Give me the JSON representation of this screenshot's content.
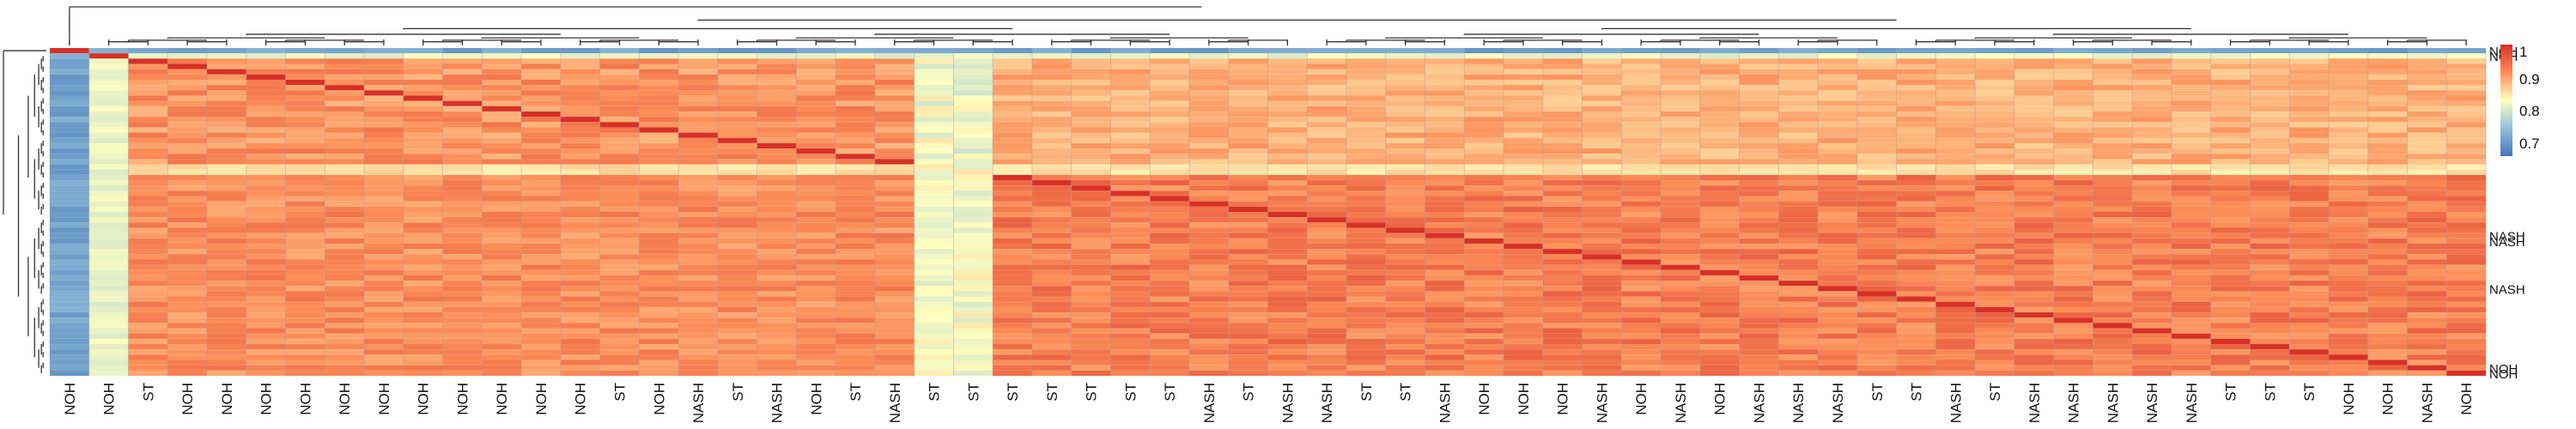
{
  "chart_data": {
    "type": "heatmap",
    "title": "",
    "xlabel": "",
    "ylabel": "",
    "columns": [
      "NOH",
      "NOH",
      "ST",
      "NOH",
      "NOH",
      "NOH",
      "NOH",
      "NOH",
      "NOH",
      "NOH",
      "NOH",
      "NOH",
      "NOH",
      "NOH",
      "ST",
      "NOH",
      "NASH",
      "ST",
      "NASH",
      "NOH",
      "ST",
      "NASH",
      "ST",
      "ST",
      "ST",
      "ST",
      "ST",
      "ST",
      "ST",
      "NASH",
      "ST",
      "NASH",
      "NASH",
      "ST",
      "ST",
      "NASH",
      "NOH",
      "NOH",
      "NOH",
      "NASH",
      "NOH",
      "NASH",
      "NOH",
      "NASH",
      "NASH",
      "NASH",
      "ST",
      "ST",
      "NASH",
      "ST",
      "NASH",
      "NASH",
      "NASH",
      "NASH",
      "NASH",
      "ST",
      "ST",
      "ST",
      "NOH",
      "NOH",
      "NASH",
      "NOH"
    ],
    "row_labels_legible": [
      "NOH",
      "NOH",
      "NASH",
      "NASH",
      "NASH",
      "NOH",
      "NOH"
    ],
    "column_dendrogram": true,
    "row_dendrogram": true,
    "color_scale": {
      "min": 0.62,
      "max": 1.0,
      "ticks": [
        1,
        0.9,
        0.8,
        0.7
      ],
      "colors": [
        "#4575b4",
        "#91bfdb",
        "#ffffbf",
        "#fc8d59",
        "#d73027"
      ]
    },
    "groups": [
      {
        "columns": [
          0,
          0
        ],
        "mean": 0.66
      },
      {
        "columns": [
          1,
          1
        ],
        "mean": 0.78
      },
      {
        "columns": [
          2,
          21
        ],
        "mean": 0.9
      },
      {
        "columns": [
          22,
          23
        ],
        "mean": 0.8
      },
      {
        "columns": [
          24,
          61
        ],
        "mean": 0.92
      }
    ]
  },
  "legend": {
    "tick_labels": [
      "1",
      "0.9",
      "0.8",
      "0.7"
    ]
  },
  "colors": {
    "background": "#ffffff",
    "cell_border": "#9a9a9a",
    "dendrogram_line": "#333333"
  }
}
